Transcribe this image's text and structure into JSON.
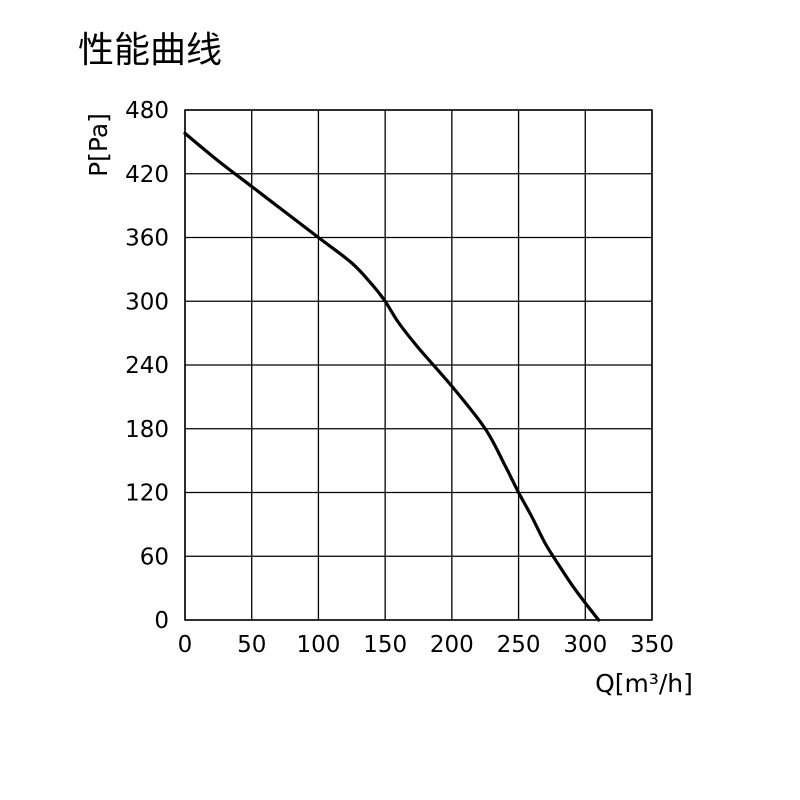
{
  "chart_data": {
    "type": "line",
    "title": "性能曲线",
    "xlabel": "Q[m³/h]",
    "ylabel": "P[Pa]",
    "xlim": [
      0,
      350
    ],
    "ylim": [
      0,
      480
    ],
    "x_ticks": [
      "0",
      "50",
      "100",
      "150",
      "200",
      "250",
      "300",
      "350"
    ],
    "y_ticks": [
      "0",
      "60",
      "120",
      "180",
      "240",
      "300",
      "360",
      "420",
      "480"
    ],
    "grid": true,
    "legend": "none",
    "line_color": "#000000",
    "series": [
      {
        "x": [
          0,
          25,
          50,
          75,
          100,
          125,
          140,
          150,
          160,
          175,
          200,
          225,
          240,
          250,
          260,
          270,
          280,
          290,
          300,
          310
        ],
        "y": [
          458,
          432,
          408,
          384,
          360,
          336,
          316,
          300,
          280,
          256,
          220,
          180,
          145,
          120,
          97,
          72,
          52,
          33,
          16,
          0
        ]
      }
    ]
  }
}
